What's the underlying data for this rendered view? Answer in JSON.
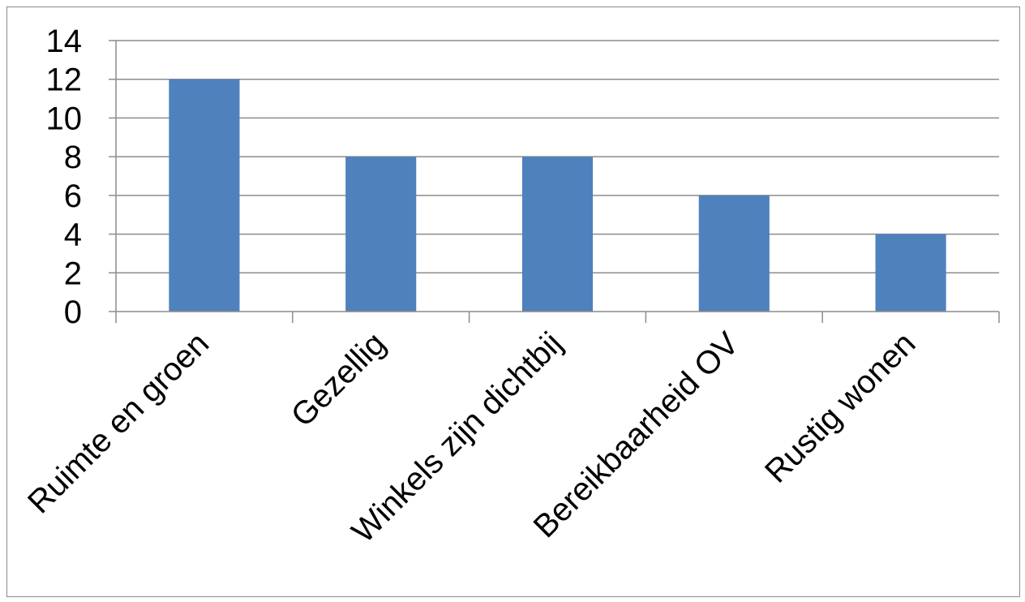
{
  "chart_data": {
    "type": "bar",
    "title": "",
    "xlabel": "",
    "ylabel": "",
    "categories": [
      "Ruimte en groen",
      "Gezellig",
      "Winkels zijn dichtbij",
      "Bereikbaarheid OV",
      "Rustig wonen"
    ],
    "values": [
      12,
      8,
      8,
      6,
      4
    ],
    "ylim": [
      0,
      14
    ],
    "yticks": [
      0,
      2,
      4,
      6,
      8,
      10,
      12,
      14
    ],
    "grid": true,
    "legend": "none",
    "bar_color": "#4f81bd",
    "grid_color": "#8c8c8c"
  }
}
